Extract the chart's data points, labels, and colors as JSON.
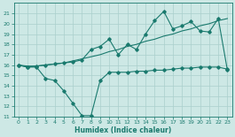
{
  "line1_x": [
    0,
    1,
    2,
    3,
    4,
    5,
    6,
    7,
    8,
    9,
    10,
    11,
    12,
    13,
    14,
    15,
    16,
    17,
    18,
    19,
    20,
    21,
    22,
    23
  ],
  "line1_y": [
    16.0,
    15.8,
    15.9,
    16.0,
    16.1,
    16.2,
    16.3,
    16.5,
    17.5,
    17.8,
    18.5,
    17.0,
    18.0,
    17.5,
    19.0,
    20.3,
    21.2,
    19.5,
    19.8,
    20.2,
    19.3,
    19.2,
    20.5,
    15.5
  ],
  "line2_x": [
    0,
    1,
    2,
    3,
    4,
    5,
    6,
    7,
    8,
    9,
    10,
    11,
    12,
    13,
    14,
    15,
    16,
    17,
    18,
    19,
    20,
    21,
    22,
    23
  ],
  "line2_y": [
    16.0,
    15.9,
    15.9,
    16.0,
    16.1,
    16.2,
    16.4,
    16.6,
    16.8,
    17.0,
    17.3,
    17.5,
    17.8,
    18.0,
    18.3,
    18.5,
    18.8,
    19.0,
    19.3,
    19.5,
    19.8,
    20.0,
    20.3,
    20.5
  ],
  "line3_x": [
    0,
    1,
    2,
    3,
    4,
    5,
    6,
    7,
    8,
    9,
    10,
    11,
    12,
    13,
    14,
    15,
    16,
    17,
    18,
    19,
    20,
    21,
    22,
    23
  ],
  "line3_y": [
    16.0,
    15.8,
    15.8,
    14.7,
    14.5,
    13.5,
    12.3,
    11.1,
    11.1,
    14.5,
    15.3,
    15.3,
    15.3,
    15.4,
    15.4,
    15.5,
    15.5,
    15.6,
    15.7,
    15.7,
    15.8,
    15.8,
    15.8,
    15.6
  ],
  "xlabel": "Humidex (Indice chaleur)",
  "ylim": [
    11,
    22
  ],
  "xlim": [
    -0.5,
    23.5
  ],
  "yticks": [
    11,
    12,
    13,
    14,
    15,
    16,
    17,
    18,
    19,
    20,
    21
  ],
  "xticks": [
    0,
    1,
    2,
    3,
    4,
    5,
    6,
    7,
    8,
    9,
    10,
    11,
    12,
    13,
    14,
    15,
    16,
    17,
    18,
    19,
    20,
    21,
    22,
    23
  ],
  "line_color": "#1a7a6e",
  "bg_color": "#cde8e5",
  "grid_color": "#aacfcc"
}
